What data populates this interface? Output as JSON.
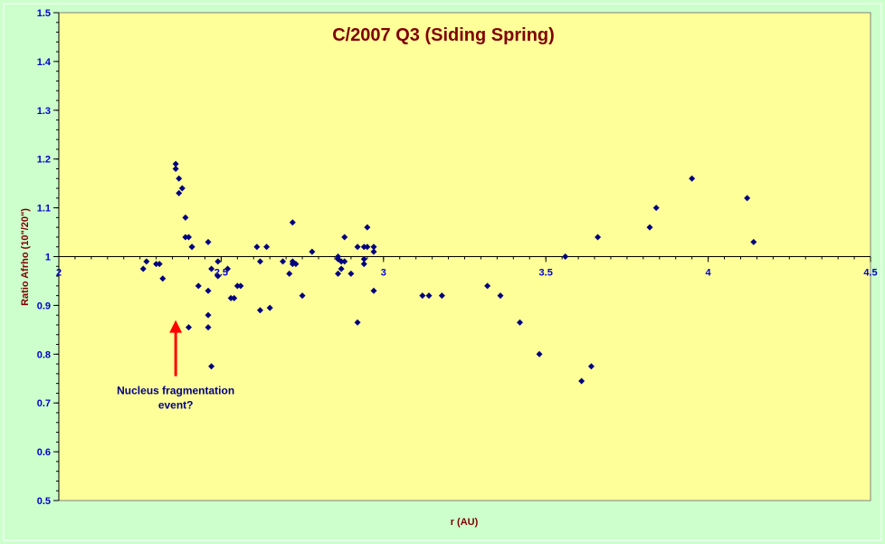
{
  "colors": {
    "background": "#ccffcc",
    "plot_area": "#ffff99",
    "marker": "#000080",
    "title": "#800000",
    "tick_labels": "#0000cc",
    "annotation_arrow": "#ff0000",
    "annotation_text": "#000080"
  },
  "chart_data": {
    "type": "scatter",
    "title": "C/2007 Q3 (Siding Spring)",
    "xlabel": "r (AU)",
    "ylabel": "Ratio Afrho (10\"/20\")",
    "xlim": [
      2,
      4.5
    ],
    "ylim": [
      0.5,
      1.5
    ],
    "x_axis_crosses_y": 1.0,
    "x_ticks": [
      2,
      2.5,
      3,
      3.5,
      4,
      4.5
    ],
    "x_tick_labels": [
      "2",
      "2.5",
      "3",
      "3.5",
      "4",
      "4.5"
    ],
    "y_ticks": [
      0.5,
      0.6,
      0.7,
      0.8,
      0.9,
      1.0,
      1.1,
      1.2,
      1.3,
      1.4,
      1.5
    ],
    "y_tick_labels": [
      "0.5",
      "0.6",
      "0.7",
      "0.8",
      "0.9",
      "1",
      "1.1",
      "1.2",
      "1.3",
      "1.4",
      "1.5"
    ],
    "grid": false,
    "legend": "none",
    "marker": "diamond",
    "series": [
      {
        "x": [
          2.26,
          2.27,
          2.3,
          2.31,
          2.32,
          2.36,
          2.36,
          2.37,
          2.37,
          2.38,
          2.39,
          2.39,
          2.4,
          2.4,
          2.41,
          2.41,
          2.43,
          2.46,
          2.46,
          2.46,
          2.46,
          2.47,
          2.47,
          2.49,
          2.49,
          2.52,
          2.53,
          2.54,
          2.55,
          2.56,
          2.61,
          2.62,
          2.62,
          2.64,
          2.65,
          2.69,
          2.71,
          2.72,
          2.72,
          2.72,
          2.73,
          2.75,
          2.78,
          2.86,
          2.86,
          2.86,
          2.87,
          2.87,
          2.88,
          2.88,
          2.9,
          2.92,
          2.92,
          2.94,
          2.94,
          2.94,
          2.95,
          2.95,
          2.97,
          2.97,
          2.97,
          3.12,
          3.14,
          3.18,
          3.32,
          3.36,
          3.42,
          3.48,
          3.56,
          3.61,
          3.64,
          3.66,
          3.82,
          3.84,
          3.95,
          4.12,
          4.14
        ],
        "y": [
          0.975,
          0.99,
          0.985,
          0.985,
          0.955,
          1.19,
          1.18,
          1.16,
          1.13,
          1.14,
          1.04,
          1.08,
          1.04,
          0.855,
          1.02,
          1.02,
          0.94,
          1.03,
          0.93,
          0.88,
          0.855,
          0.775,
          0.975,
          0.99,
          0.96,
          0.975,
          0.915,
          0.915,
          0.94,
          0.94,
          1.02,
          0.99,
          0.89,
          1.02,
          0.895,
          0.99,
          0.965,
          1.07,
          0.99,
          0.985,
          0.985,
          0.92,
          1.01,
          0.965,
          1.0,
          0.995,
          0.99,
          0.975,
          0.99,
          1.04,
          0.965,
          1.02,
          0.865,
          0.985,
          0.995,
          1.02,
          1.06,
          1.02,
          1.02,
          1.01,
          0.93,
          0.92,
          0.92,
          0.92,
          0.94,
          0.92,
          0.865,
          0.8,
          1.0,
          0.745,
          0.775,
          1.04,
          1.06,
          1.1,
          1.16,
          1.12,
          1.03
        ]
      }
    ],
    "annotations": [
      {
        "text_lines": [
          "Nucleus fragmentation",
          "event?"
        ],
        "arrow_x": 2.36,
        "arrow_y_from": 0.755,
        "arrow_y_to": 0.87
      }
    ]
  }
}
